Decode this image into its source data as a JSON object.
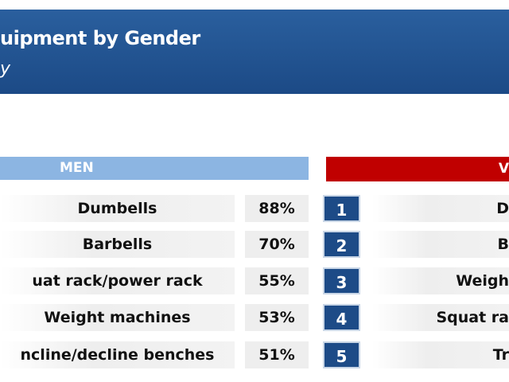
{
  "header": {
    "title": "uipment by Gender",
    "subtitle": "y"
  },
  "men": {
    "heading": "MEN",
    "rows": [
      [
        "Dumbells",
        "88%"
      ],
      [
        "Barbells",
        "70%"
      ],
      [
        "uat rack/power rack",
        "55%"
      ],
      [
        "Weight machines",
        "53%"
      ],
      [
        "ncline/decline benches",
        "51%"
      ]
    ]
  },
  "ranks": [
    "1",
    "2",
    "3",
    "4",
    "5"
  ],
  "women": {
    "heading": "V",
    "rows": [
      "D",
      "B",
      "Weigh",
      "Squat ra",
      "Tr"
    ]
  }
}
